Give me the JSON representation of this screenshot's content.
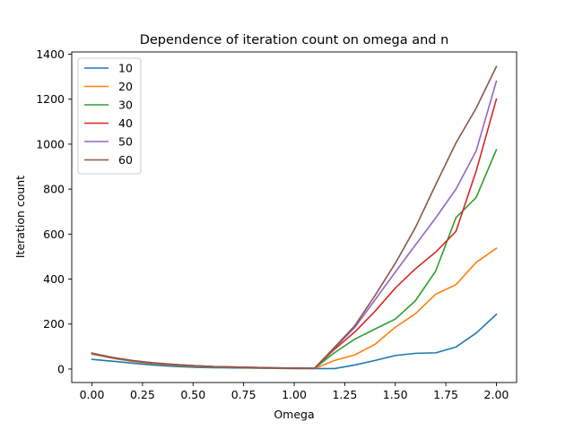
{
  "chart_data": {
    "type": "line",
    "title": "Dependence of iteration count on omega and n",
    "xlabel": "Omega",
    "ylabel": "Iteration count",
    "xlim": [
      -0.1,
      2.1
    ],
    "ylim": [
      -60,
      1410
    ],
    "xticks": [
      0.0,
      0.25,
      0.5,
      0.75,
      1.0,
      1.25,
      1.5,
      1.75,
      2.0
    ],
    "xtick_labels": [
      "0.00",
      "0.25",
      "0.50",
      "0.75",
      "1.00",
      "1.25",
      "1.50",
      "1.75",
      "2.00"
    ],
    "yticks": [
      0,
      200,
      400,
      600,
      800,
      1000,
      1200,
      1400
    ],
    "ytick_labels": [
      "0",
      "200",
      "400",
      "600",
      "800",
      "1000",
      "1200",
      "1400"
    ],
    "grid": false,
    "legend_position": "upper-left",
    "x": [
      0.0,
      0.1,
      0.2,
      0.3,
      0.4,
      0.5,
      0.6,
      0.7,
      0.8,
      0.9,
      1.0,
      1.1,
      1.2,
      1.3,
      1.4,
      1.5,
      1.6,
      1.7,
      1.8,
      1.9,
      2.0
    ],
    "series": [
      {
        "name": "10",
        "color": "#1f77b4",
        "values": [
          43,
          35,
          26,
          18,
          12,
          8,
          6,
          5,
          4,
          3,
          2,
          2,
          2,
          18,
          38,
          60,
          70,
          72,
          98,
          160,
          243
        ]
      },
      {
        "name": "20",
        "color": "#ff7f0e",
        "values": [
          66,
          48,
          34,
          24,
          17,
          12,
          9,
          7,
          5,
          4,
          3,
          2,
          38,
          63,
          110,
          186,
          246,
          333,
          375,
          474,
          537
        ]
      },
      {
        "name": "30",
        "color": "#2ca02c",
        "values": [
          69,
          50,
          36,
          26,
          19,
          14,
          10,
          8,
          6,
          5,
          4,
          3,
          73,
          133,
          178,
          222,
          304,
          436,
          673,
          763,
          975
        ]
      },
      {
        "name": "40",
        "color": "#d62728",
        "values": [
          70,
          51,
          37,
          27,
          20,
          15,
          11,
          9,
          7,
          5,
          4,
          3,
          88,
          165,
          257,
          360,
          446,
          520,
          612,
          880,
          1200
        ]
      },
      {
        "name": "50",
        "color": "#9467bd",
        "values": [
          70,
          51,
          37,
          27,
          20,
          15,
          11,
          9,
          7,
          5,
          4,
          3,
          94,
          185,
          308,
          431,
          552,
          672,
          800,
          970,
          1280
        ]
      },
      {
        "name": "60",
        "color": "#8c564b",
        "values": [
          71,
          52,
          38,
          28,
          21,
          15,
          11,
          9,
          7,
          5,
          4,
          3,
          97,
          193,
          327,
          470,
          630,
          820,
          1005,
          1160,
          1345
        ]
      }
    ]
  }
}
